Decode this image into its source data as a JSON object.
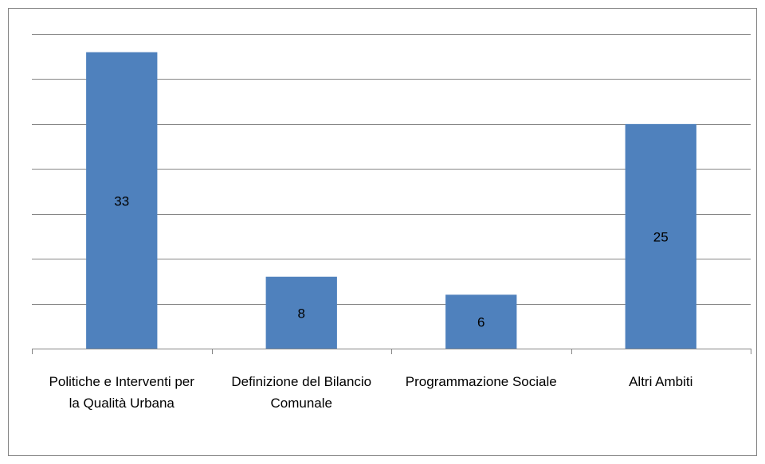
{
  "chart_data": {
    "type": "bar",
    "categories": [
      "Politiche e Interventi per la Qualità Urbana",
      "Definizione del Bilancio Comunale",
      "Programmazione Sociale",
      "Altri Ambiti"
    ],
    "values": [
      33,
      8,
      6,
      25
    ],
    "color": "#4f81bd",
    "ylim": [
      0,
      35
    ],
    "yticks": [
      0,
      5,
      10,
      15,
      20,
      25,
      30,
      35
    ],
    "grid": true,
    "data_labels": true
  }
}
